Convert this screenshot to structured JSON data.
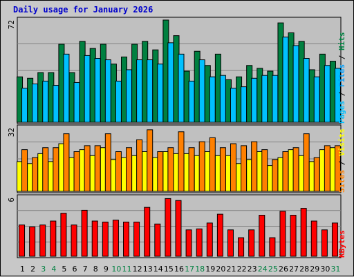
{
  "chart_data": {
    "type": "bar",
    "title": "Daily usage for January 2026",
    "days": [
      "1",
      "2",
      "3",
      "4",
      "5",
      "6",
      "7",
      "8",
      "9",
      "10",
      "11",
      "12",
      "13",
      "14",
      "15",
      "16",
      "17",
      "18",
      "19",
      "20",
      "21",
      "22",
      "23",
      "24",
      "25",
      "26",
      "27",
      "28",
      "29",
      "30",
      "31"
    ],
    "weekend_days": [
      3,
      4,
      10,
      11,
      17,
      18,
      24,
      25,
      31
    ],
    "colors": {
      "hits": "#008040",
      "files": "#00c0ff",
      "pages": "#00ffff",
      "visits": "#ffff00",
      "sites": "#ff8000",
      "kbytes": "#ff0000",
      "weekday_label": "#000000",
      "weekend_label": "#008040",
      "title": "#0000cc"
    },
    "panels": [
      {
        "max_label": "72",
        "ymax": 72,
        "legend": [
          {
            "text": "Pages",
            "color": "#00c0ff"
          },
          {
            "text": " / ",
            "color": "#000000"
          },
          {
            "text": "Files",
            "color": "#00a0ff"
          },
          {
            "text": " / ",
            "color": "#000000"
          },
          {
            "text": "Hits",
            "color": "#008040"
          }
        ],
        "series": [
          {
            "name": "Hits",
            "color": "#008040",
            "values": [
              32,
              31,
              35,
              35,
              55,
              35,
              57,
              52,
              55,
              41,
              46,
              55,
              57,
              51,
              72,
              61,
              36,
              50,
              40,
              48,
              30,
              32,
              40,
              38,
              36,
              70,
              63,
              57,
              37,
              48,
              43
            ]
          },
          {
            "name": "Files",
            "color": "#00c0ff",
            "values": [
              24,
              27,
              29,
              26,
              48,
              28,
              47,
              45,
              44,
              29,
              37,
              44,
              44,
              41,
              56,
              48,
              29,
              44,
              32,
              33,
              24,
              25,
              31,
              33,
              33,
              60,
              54,
              45,
              32,
              40,
              38
            ]
          }
        ]
      },
      {
        "max_label": "32",
        "ymax": 32,
        "legend": [
          {
            "text": "Sites",
            "color": "#ff8000"
          },
          {
            "text": " / ",
            "color": "#000000"
          },
          {
            "text": "Visits",
            "color": "#ffff00"
          }
        ],
        "series": [
          {
            "name": "Visits",
            "color": "#ffff00",
            "values": [
              15,
              14,
              19,
              15,
              24,
              17,
              21,
              18,
              22,
              16,
              17,
              18,
              20,
              17,
              20,
              19,
              19,
              18,
              20,
              18,
              18,
              14,
              16,
              20,
              13,
              17,
              21,
              18,
              15,
              21,
              22
            ]
          },
          {
            "name": "Sites",
            "color": "#ff8000",
            "values": [
              21,
              17,
              22,
              22,
              29,
              20,
              23,
              23,
              29,
              20,
              22,
              26,
              31,
              20,
              22,
              30,
              22,
              25,
              27,
              22,
              24,
              23,
              25,
              21,
              16,
              20,
              22,
              29,
              17,
              23,
              23
            ]
          }
        ]
      },
      {
        "max_label": "6",
        "ymax": 6,
        "legend": [
          {
            "text": "KBytes",
            "color": "#ff0000"
          }
        ],
        "series": [
          {
            "name": "KBytes",
            "color": "#ff0000",
            "values": [
              3.2,
              3.0,
              3.2,
              3.6,
              4.4,
              3.2,
              4.7,
              3.6,
              3.5,
              3.7,
              3.5,
              3.5,
              5.0,
              3.3,
              5.9,
              5.7,
              2.7,
              2.8,
              3.4,
              4.3,
              2.7,
              1.9,
              2.7,
              4.2,
              1.9,
              4.6,
              4.2,
              4.9,
              3.6,
              2.7,
              3.4
            ]
          }
        ]
      }
    ]
  }
}
